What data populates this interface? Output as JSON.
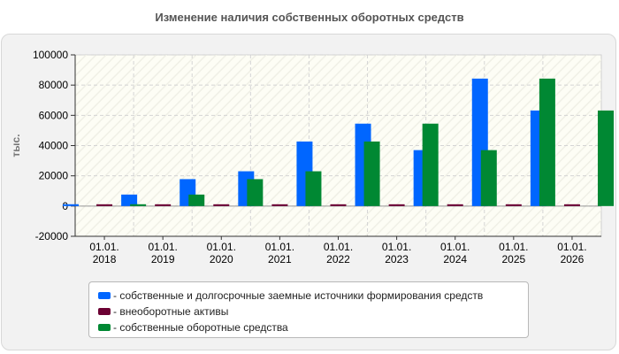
{
  "chart_data": {
    "type": "bar",
    "title": "Изменение наличия собственных оборотных средств",
    "ylabel": "тыс.",
    "xlabel": "",
    "categories": [
      "01.01.\n2018",
      "01.01.\n2019",
      "01.01.\n2020",
      "01.01.\n2021",
      "01.01.\n2022",
      "01.01.\n2023",
      "01.01.\n2024",
      "01.01.\n2025",
      "01.01.\n2026"
    ],
    "ylim": [
      -20000,
      100000
    ],
    "yticks": [
      -20000,
      0,
      20000,
      40000,
      60000,
      80000,
      100000
    ],
    "ytick_labels": [
      "-20000",
      "0",
      "20000",
      "40000",
      "60000",
      "80000",
      "100000"
    ],
    "grid": true,
    "legend_position": "bottom",
    "series": [
      {
        "name": "- собственные и долгосрочные заемные источники формирования средств",
        "color": "#0066ff",
        "values": [
          1200,
          7600,
          17800,
          23000,
          42700,
          54500,
          37000,
          84300,
          63200
        ]
      },
      {
        "name": "- внеоборотные активы",
        "color": "#6b0033",
        "values": [
          600,
          600,
          600,
          600,
          600,
          600,
          600,
          600,
          600
        ]
      },
      {
        "name": "- собственные оборотные средства",
        "color": "#008833",
        "values": [
          1200,
          7600,
          17800,
          23000,
          42700,
          54500,
          37000,
          84300,
          63200
        ]
      }
    ]
  }
}
